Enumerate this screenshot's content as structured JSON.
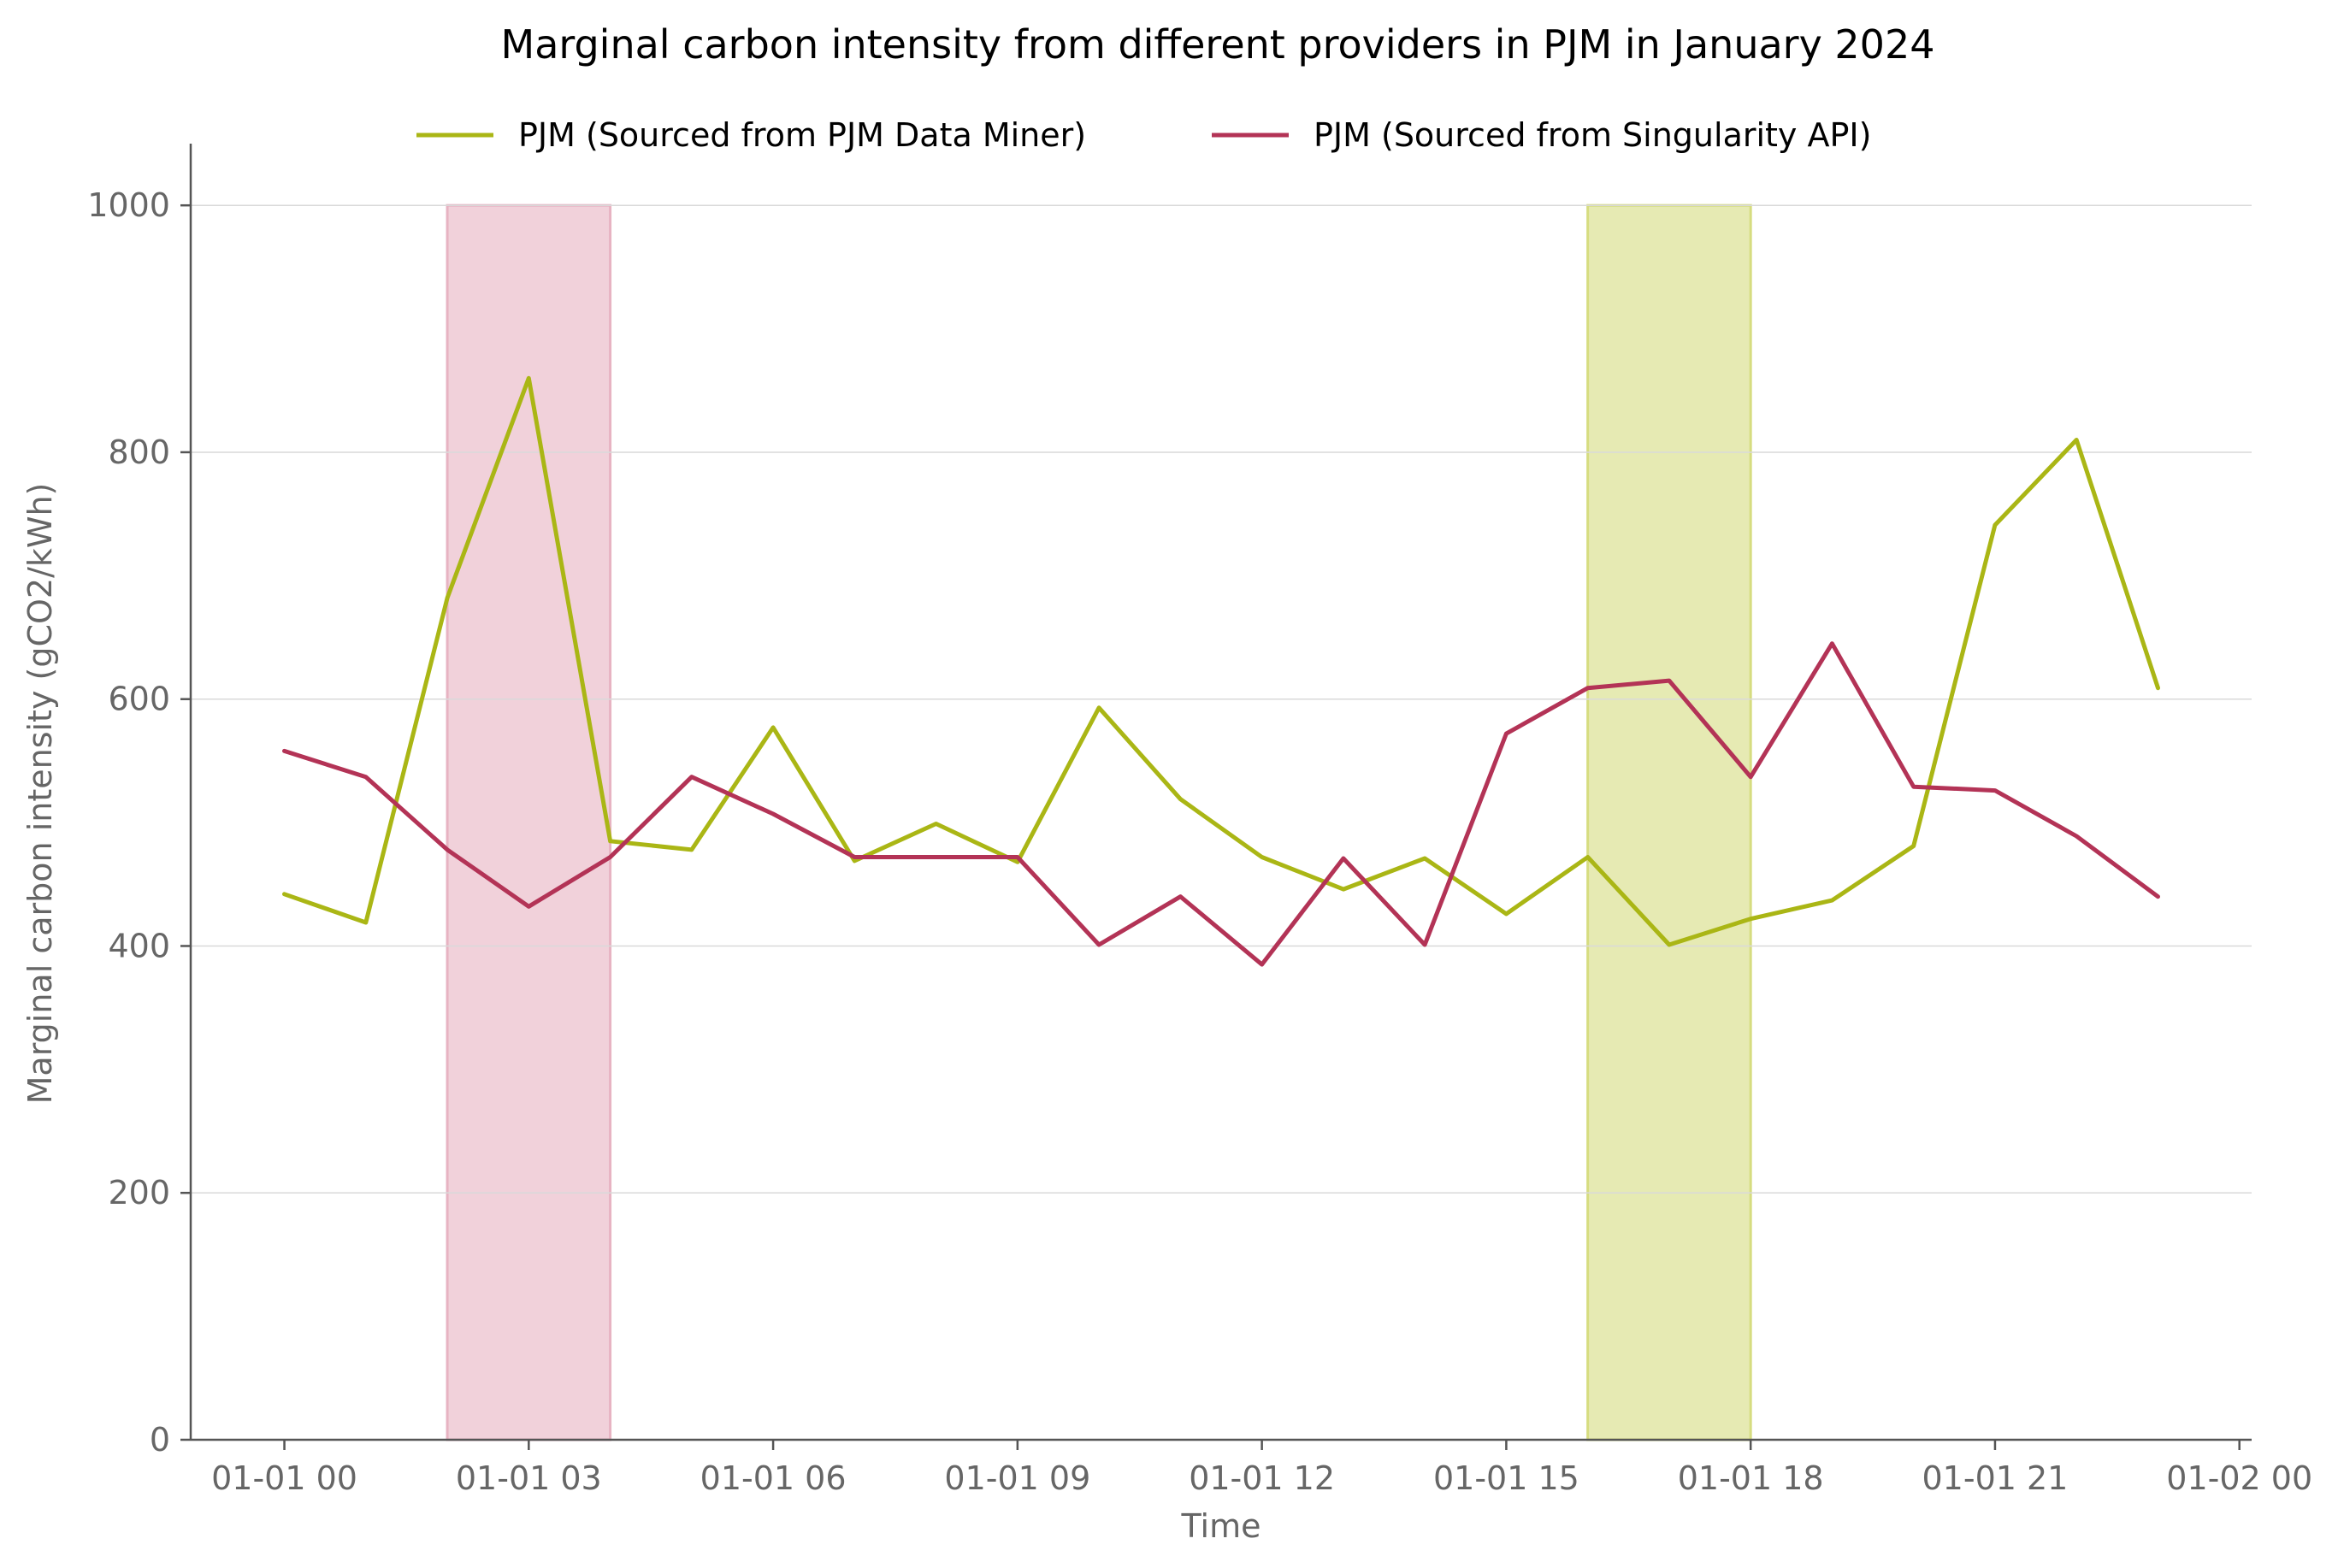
{
  "chart_data": {
    "type": "line",
    "title": "Marginal carbon intensity from different providers in PJM in January 2024",
    "xlabel": "Time",
    "ylabel": "Marginal carbon intensity (gCO2/kWh)",
    "x_unit": "hours",
    "xlim": [
      -1.15,
      24.15
    ],
    "ylim": [
      0,
      1050
    ],
    "x_ticks": [
      0,
      3,
      6,
      9,
      12,
      15,
      18,
      21,
      24
    ],
    "x_tick_labels": [
      "01-01 00",
      "01-01 03",
      "01-01 06",
      "01-01 09",
      "01-01 12",
      "01-01 15",
      "01-01 18",
      "01-01 21",
      "01-02 00"
    ],
    "y_ticks": [
      0,
      200,
      400,
      600,
      800,
      1000
    ],
    "y_tick_labels": [
      "0",
      "200",
      "400",
      "600",
      "800",
      "1000"
    ],
    "grid": "horizontal",
    "legend_position": "top-center",
    "x": [
      0,
      1,
      2,
      3,
      4,
      5,
      6,
      7,
      8,
      9,
      10,
      11,
      12,
      13,
      14,
      15,
      16,
      17,
      18,
      19,
      20,
      21,
      22,
      23
    ],
    "series": [
      {
        "name": "PJM (Sourced from PJM Data Miner)",
        "color": "#aab615",
        "values": [
          442,
          419,
          682,
          860,
          485,
          478,
          577,
          469,
          499,
          468,
          593,
          519,
          472,
          446,
          471,
          426,
          472,
          401,
          422,
          437,
          481,
          741,
          810,
          609
        ]
      },
      {
        "name": "PJM (Sourced from Singularity API)",
        "color": "#b33356",
        "values": [
          558,
          537,
          478,
          432,
          472,
          537,
          507,
          472,
          472,
          472,
          401,
          440,
          385,
          471,
          401,
          572,
          609,
          615,
          537,
          645,
          529,
          526,
          489,
          440
        ]
      }
    ],
    "highlight_bands": [
      {
        "x_start": 2,
        "x_end": 4,
        "y_top": 1000,
        "color": "#e7b3c2"
      },
      {
        "x_start": 16,
        "x_end": 18,
        "y_top": 1000,
        "color": "#d6dc80"
      }
    ]
  }
}
